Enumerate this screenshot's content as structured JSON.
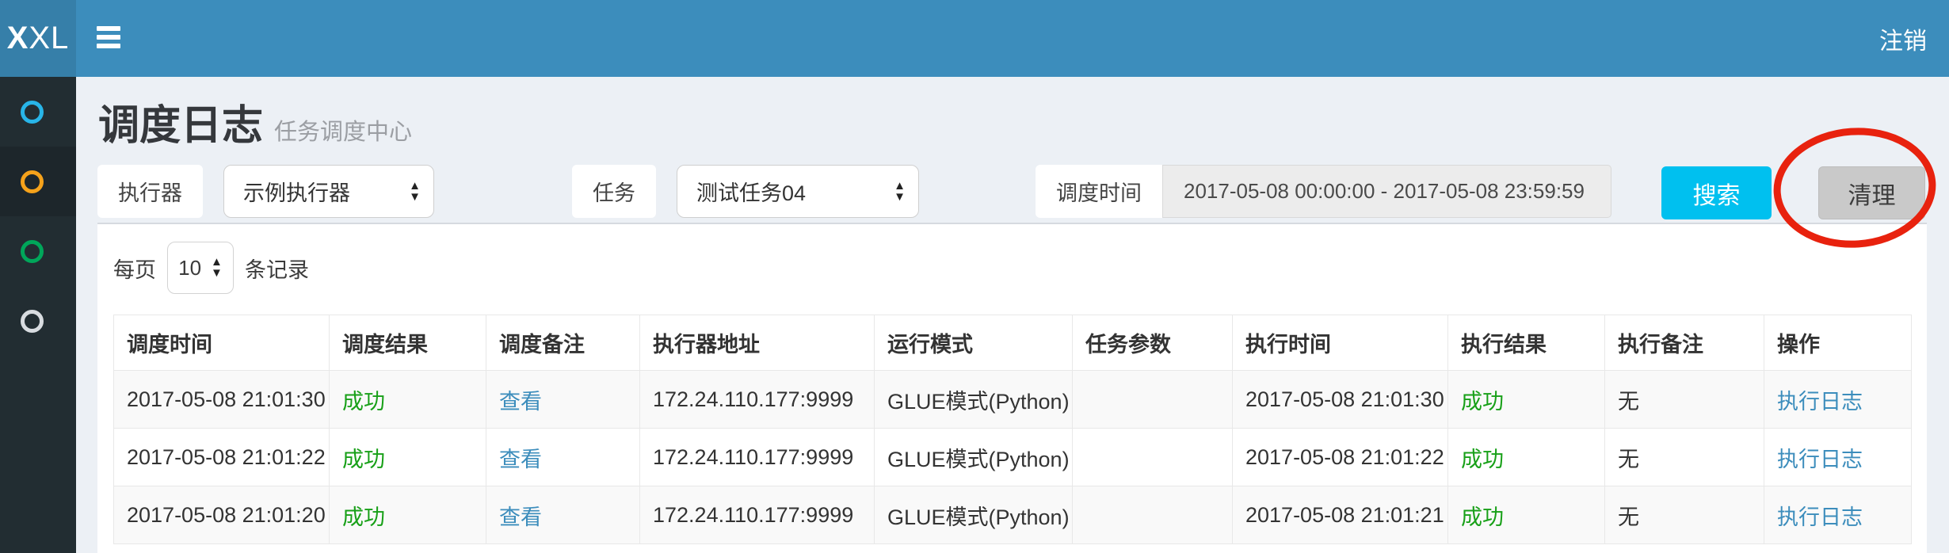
{
  "navbar": {
    "logo_bold": "X",
    "logo_rest": "XL",
    "logout_label": "注销"
  },
  "sidebar": {
    "items": [
      {
        "icon": "circle-icon",
        "color": "#28b5e8",
        "active": false
      },
      {
        "icon": "circle-icon",
        "color": "#f5a21b",
        "active": true
      },
      {
        "icon": "circle-icon",
        "color": "#00a65a",
        "active": false
      },
      {
        "icon": "circle-icon",
        "color": "#d8dce0",
        "active": false
      }
    ]
  },
  "page": {
    "title": "调度日志",
    "subtitle": "任务调度中心"
  },
  "filters": {
    "executor": {
      "label": "执行器",
      "value": "示例执行器"
    },
    "job": {
      "label": "任务",
      "value": "测试任务04"
    },
    "trigger_time": {
      "label": "调度时间",
      "value": "2017-05-08 00:00:00 - 2017-05-08 23:59:59"
    },
    "search_button": "搜索",
    "clear_button": "清理"
  },
  "page_size": {
    "prefix": "每页",
    "value": "10",
    "suffix": "条记录"
  },
  "table": {
    "columns": [
      {
        "label": "调度时间",
        "name": "trigger-time",
        "type": "text"
      },
      {
        "label": "调度结果",
        "name": "trigger-result",
        "type": "success"
      },
      {
        "label": "调度备注",
        "name": "trigger-msg",
        "type": "link"
      },
      {
        "label": "执行器地址",
        "name": "executor-address",
        "type": "text"
      },
      {
        "label": "运行模式",
        "name": "run-mode",
        "type": "text"
      },
      {
        "label": "任务参数",
        "name": "job-param",
        "type": "text"
      },
      {
        "label": "执行时间",
        "name": "handle-time",
        "type": "text"
      },
      {
        "label": "执行结果",
        "name": "handle-result",
        "type": "success"
      },
      {
        "label": "执行备注",
        "name": "handle-msg",
        "type": "text"
      },
      {
        "label": "操作",
        "name": "action",
        "type": "link"
      }
    ],
    "rows": [
      [
        "2017-05-08 21:01:30",
        "成功",
        "查看",
        "172.24.110.177:9999",
        "GLUE模式(Python)",
        "",
        "2017-05-08 21:01:30",
        "成功",
        "无",
        "执行日志"
      ],
      [
        "2017-05-08 21:01:22",
        "成功",
        "查看",
        "172.24.110.177:9999",
        "GLUE模式(Python)",
        "",
        "2017-05-08 21:01:22",
        "成功",
        "无",
        "执行日志"
      ],
      [
        "2017-05-08 21:01:20",
        "成功",
        "查看",
        "172.24.110.177:9999",
        "GLUE模式(Python)",
        "",
        "2017-05-08 21:01:21",
        "成功",
        "无",
        "执行日志"
      ]
    ]
  },
  "annotation": {
    "shape": "ellipse",
    "color": "#e8220e",
    "target": "clear-button"
  },
  "colors": {
    "navbar": "#3c8dbc",
    "logo_bg": "#367fa9",
    "sidebar": "#222d32",
    "content_bg": "#ecf0f5",
    "accent_info": "#00c0ef",
    "link": "#3c8dbc",
    "success": "#18a018"
  }
}
